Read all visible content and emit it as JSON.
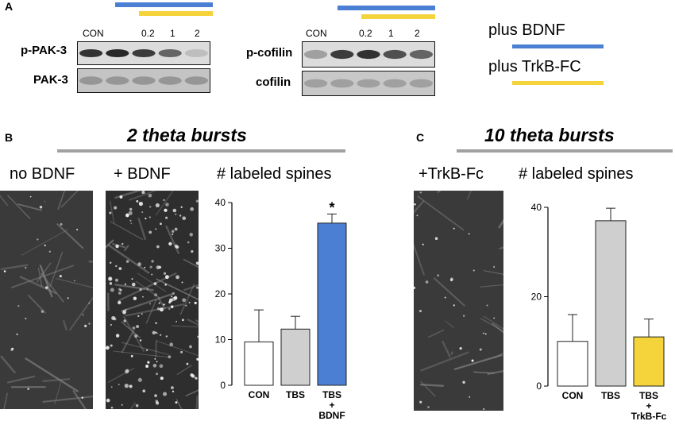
{
  "panel_a": {
    "letter": "A",
    "blot_left": {
      "lanes": [
        "CON",
        "0.2",
        "1",
        "2"
      ],
      "rows": [
        "p-PAK-3",
        "PAK-3"
      ],
      "p_band_intensity": [
        0.85,
        0.9,
        0.8,
        0.6,
        0.15
      ]
    },
    "blot_right": {
      "lanes": [
        "CON",
        "0.2",
        "1",
        "2"
      ],
      "rows": [
        "p-cofilin",
        "cofilin"
      ],
      "p_band_intensity": [
        0.3,
        0.8,
        0.85,
        0.7,
        0.6
      ]
    },
    "legend": {
      "bdnf": "plus BDNF",
      "trkb": "plus TrkB-FC"
    }
  },
  "panel_b": {
    "letter": "B",
    "title": "2 theta bursts",
    "image_labels": [
      "no BDNF",
      "+ BDNF"
    ],
    "chart_title": "# labeled spines"
  },
  "panel_c": {
    "letter": "C",
    "title": "10 theta bursts",
    "image_label": "+TrkB-Fc",
    "chart_title": "# labeled spines"
  },
  "colors": {
    "bdnf_blue": "#4a7fd4",
    "trkb_yellow": "#f5d33a",
    "title_gray": "#a0a0a0",
    "bar_gray": "#cfcfcf"
  },
  "chart_data": [
    {
      "type": "bar",
      "panel": "B",
      "title": "# labeled spines",
      "categories": [
        "CON",
        "TBS",
        "TBS + BDNF"
      ],
      "category_lines": [
        [
          "CON"
        ],
        [
          "TBS"
        ],
        [
          "TBS",
          "+",
          "BDNF"
        ]
      ],
      "values": [
        9.5,
        12.3,
        35.5
      ],
      "errors": [
        7.0,
        2.8,
        2.0
      ],
      "colors": [
        "#ffffff",
        "#cfcfcf",
        "#4a7fd4"
      ],
      "annotations": [
        "",
        "",
        "*"
      ],
      "ylim": [
        0,
        40
      ],
      "yticks": [
        0,
        10,
        20,
        30,
        40
      ]
    },
    {
      "type": "bar",
      "panel": "C",
      "title": "# labeled spines",
      "categories": [
        "CON",
        "TBS",
        "TBS + TrkB-Fc"
      ],
      "category_lines": [
        [
          "CON"
        ],
        [
          "TBS"
        ],
        [
          "TBS",
          "+",
          "TrkB-Fc"
        ]
      ],
      "values": [
        10.0,
        37.0,
        11.0
      ],
      "errors": [
        6.0,
        2.8,
        4.0
      ],
      "colors": [
        "#ffffff",
        "#cfcfcf",
        "#f5d33a"
      ],
      "annotations": [
        "",
        "",
        ""
      ],
      "ylim": [
        0,
        40
      ],
      "yticks": [
        0,
        20,
        40
      ]
    }
  ]
}
